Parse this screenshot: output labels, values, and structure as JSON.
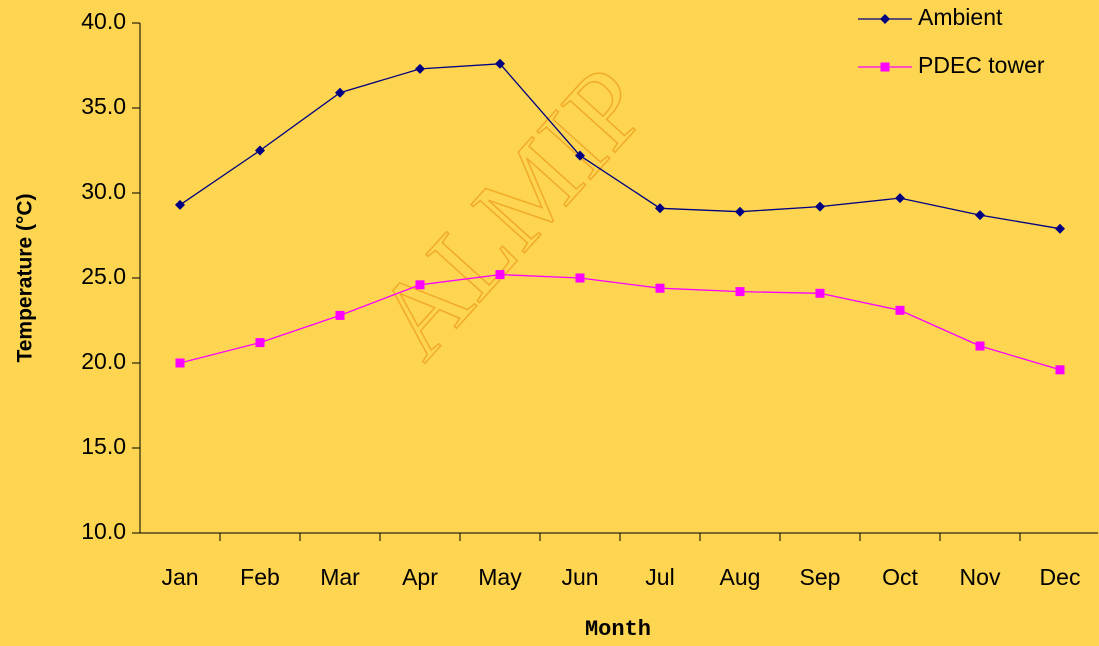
{
  "chart_data": {
    "type": "line",
    "watermark": "ALMIP",
    "xlabel": "Month",
    "ylabel": "Temperature (°C)",
    "categories": [
      "Jan",
      "Feb",
      "Mar",
      "Apr",
      "May",
      "Jun",
      "Jul",
      "Aug",
      "Sep",
      "Oct",
      "Nov",
      "Dec"
    ],
    "series": [
      {
        "name": "Ambient",
        "color": "#000080",
        "marker": "diamond",
        "values": [
          29.3,
          32.5,
          35.9,
          37.3,
          37.6,
          32.2,
          29.1,
          28.9,
          29.2,
          29.7,
          28.7,
          27.9
        ]
      },
      {
        "name": "PDEC tower",
        "color": "#ff00ff",
        "marker": "square",
        "values": [
          20.0,
          21.2,
          22.8,
          24.6,
          25.2,
          25.0,
          24.4,
          24.2,
          24.1,
          23.1,
          21.0,
          19.6
        ]
      }
    ],
    "ylim": [
      10,
      40
    ],
    "yticks": [
      {
        "value": 10,
        "label": "10.0"
      },
      {
        "value": 15,
        "label": "15.0"
      },
      {
        "value": 20,
        "label": "20.0"
      },
      {
        "value": 25,
        "label": "25.0"
      },
      {
        "value": 30,
        "label": "30.0"
      },
      {
        "value": 35,
        "label": "35.0"
      },
      {
        "value": 40,
        "label": "40.0"
      }
    ],
    "grid": false,
    "legend": "top-right"
  }
}
